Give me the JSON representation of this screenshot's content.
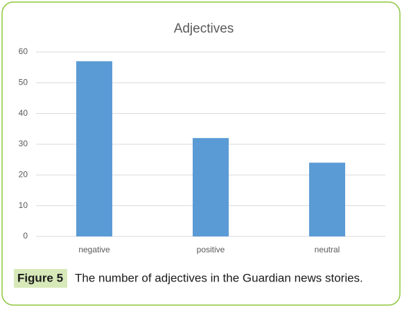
{
  "chart_data": {
    "type": "bar",
    "title": "Adjectives",
    "categories": [
      "negative",
      "positive",
      "neutral"
    ],
    "values": [
      57,
      32,
      24
    ],
    "color": "#5b9bd5",
    "ylim": [
      0,
      60
    ],
    "yticks": [
      0,
      10,
      20,
      30,
      40,
      50,
      60
    ],
    "grid": true
  },
  "figure": {
    "label": "Figure 5",
    "caption": "The number of adjectives in the Guardian news stories."
  }
}
